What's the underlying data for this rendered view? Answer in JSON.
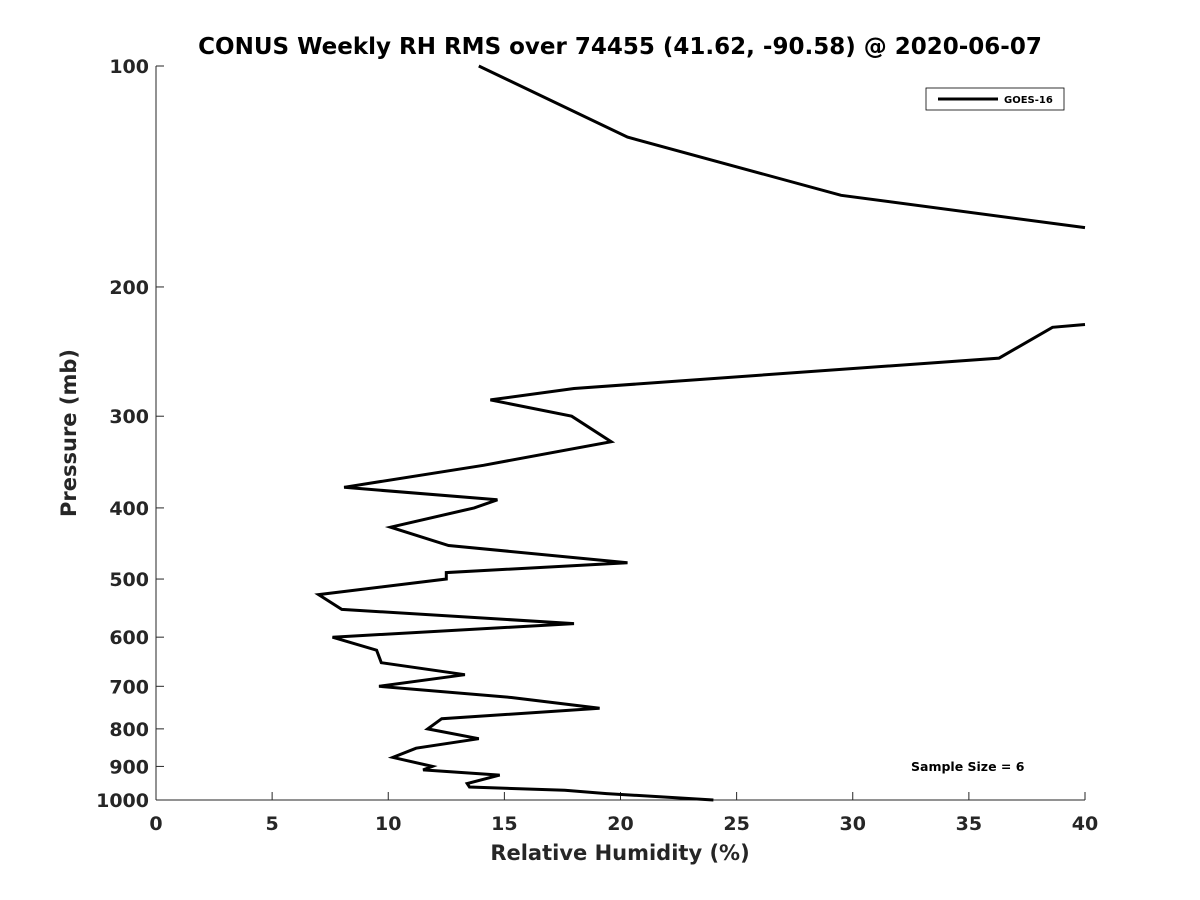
{
  "chart_data": {
    "type": "line",
    "title": "CONUS Weekly RH RMS over 74455 (41.62, -90.58) @ 2020-06-07",
    "xlabel": "Relative Humidity (%)",
    "ylabel": "Pressure (mb)",
    "xlim": [
      0,
      40
    ],
    "ylim": [
      1000,
      100
    ],
    "y_scale": "log",
    "grid": false,
    "legend_position": "top-right",
    "x_ticks": [
      0,
      5,
      10,
      15,
      20,
      25,
      30,
      35,
      40
    ],
    "y_ticks": [
      100,
      200,
      300,
      400,
      500,
      600,
      700,
      800,
      900,
      1000
    ],
    "x_tick_labels": [
      "0",
      "5",
      "10",
      "15",
      "20",
      "25",
      "30",
      "35",
      "40"
    ],
    "y_tick_labels": [
      "100",
      "200",
      "300",
      "400",
      "500",
      "600",
      "700",
      "800",
      "900",
      "1000"
    ],
    "annotation": "Sample Size = 6",
    "series": [
      {
        "name": "GOES-16",
        "color": "#000000",
        "segments": [
          [
            {
              "x": 13.9,
              "p": 100
            },
            {
              "x": 20.3,
              "p": 125
            },
            {
              "x": 29.5,
              "p": 150
            },
            {
              "x": 40.0,
              "p": 166
            }
          ],
          [
            {
              "x": 40.0,
              "p": 225
            },
            {
              "x": 38.6,
              "p": 227
            },
            {
              "x": 36.3,
              "p": 250
            },
            {
              "x": 18.0,
              "p": 275
            },
            {
              "x": 14.4,
              "p": 285
            },
            {
              "x": 17.9,
              "p": 300
            },
            {
              "x": 19.6,
              "p": 325
            },
            {
              "x": 14.1,
              "p": 350
            },
            {
              "x": 8.1,
              "p": 375
            },
            {
              "x": 14.7,
              "p": 390
            },
            {
              "x": 13.7,
              "p": 400
            },
            {
              "x": 10.1,
              "p": 425
            },
            {
              "x": 12.6,
              "p": 450
            },
            {
              "x": 20.3,
              "p": 475
            },
            {
              "x": 12.5,
              "p": 490
            },
            {
              "x": 12.5,
              "p": 500
            },
            {
              "x": 7.0,
              "p": 525
            },
            {
              "x": 8.0,
              "p": 550
            },
            {
              "x": 18.0,
              "p": 575
            },
            {
              "x": 7.6,
              "p": 600
            },
            {
              "x": 9.5,
              "p": 625
            },
            {
              "x": 9.7,
              "p": 650
            },
            {
              "x": 13.3,
              "p": 675
            },
            {
              "x": 9.6,
              "p": 700
            },
            {
              "x": 15.3,
              "p": 725
            },
            {
              "x": 19.1,
              "p": 750
            },
            {
              "x": 12.3,
              "p": 775
            },
            {
              "x": 11.7,
              "p": 800
            },
            {
              "x": 13.9,
              "p": 825
            },
            {
              "x": 11.2,
              "p": 850
            },
            {
              "x": 10.2,
              "p": 875
            },
            {
              "x": 11.9,
              "p": 900
            },
            {
              "x": 11.5,
              "p": 910
            },
            {
              "x": 14.8,
              "p": 925
            },
            {
              "x": 13.4,
              "p": 950
            },
            {
              "x": 13.5,
              "p": 960
            },
            {
              "x": 17.6,
              "p": 970
            },
            {
              "x": 19.4,
              "p": 980
            },
            {
              "x": 24.0,
              "p": 1000
            }
          ]
        ]
      }
    ]
  }
}
